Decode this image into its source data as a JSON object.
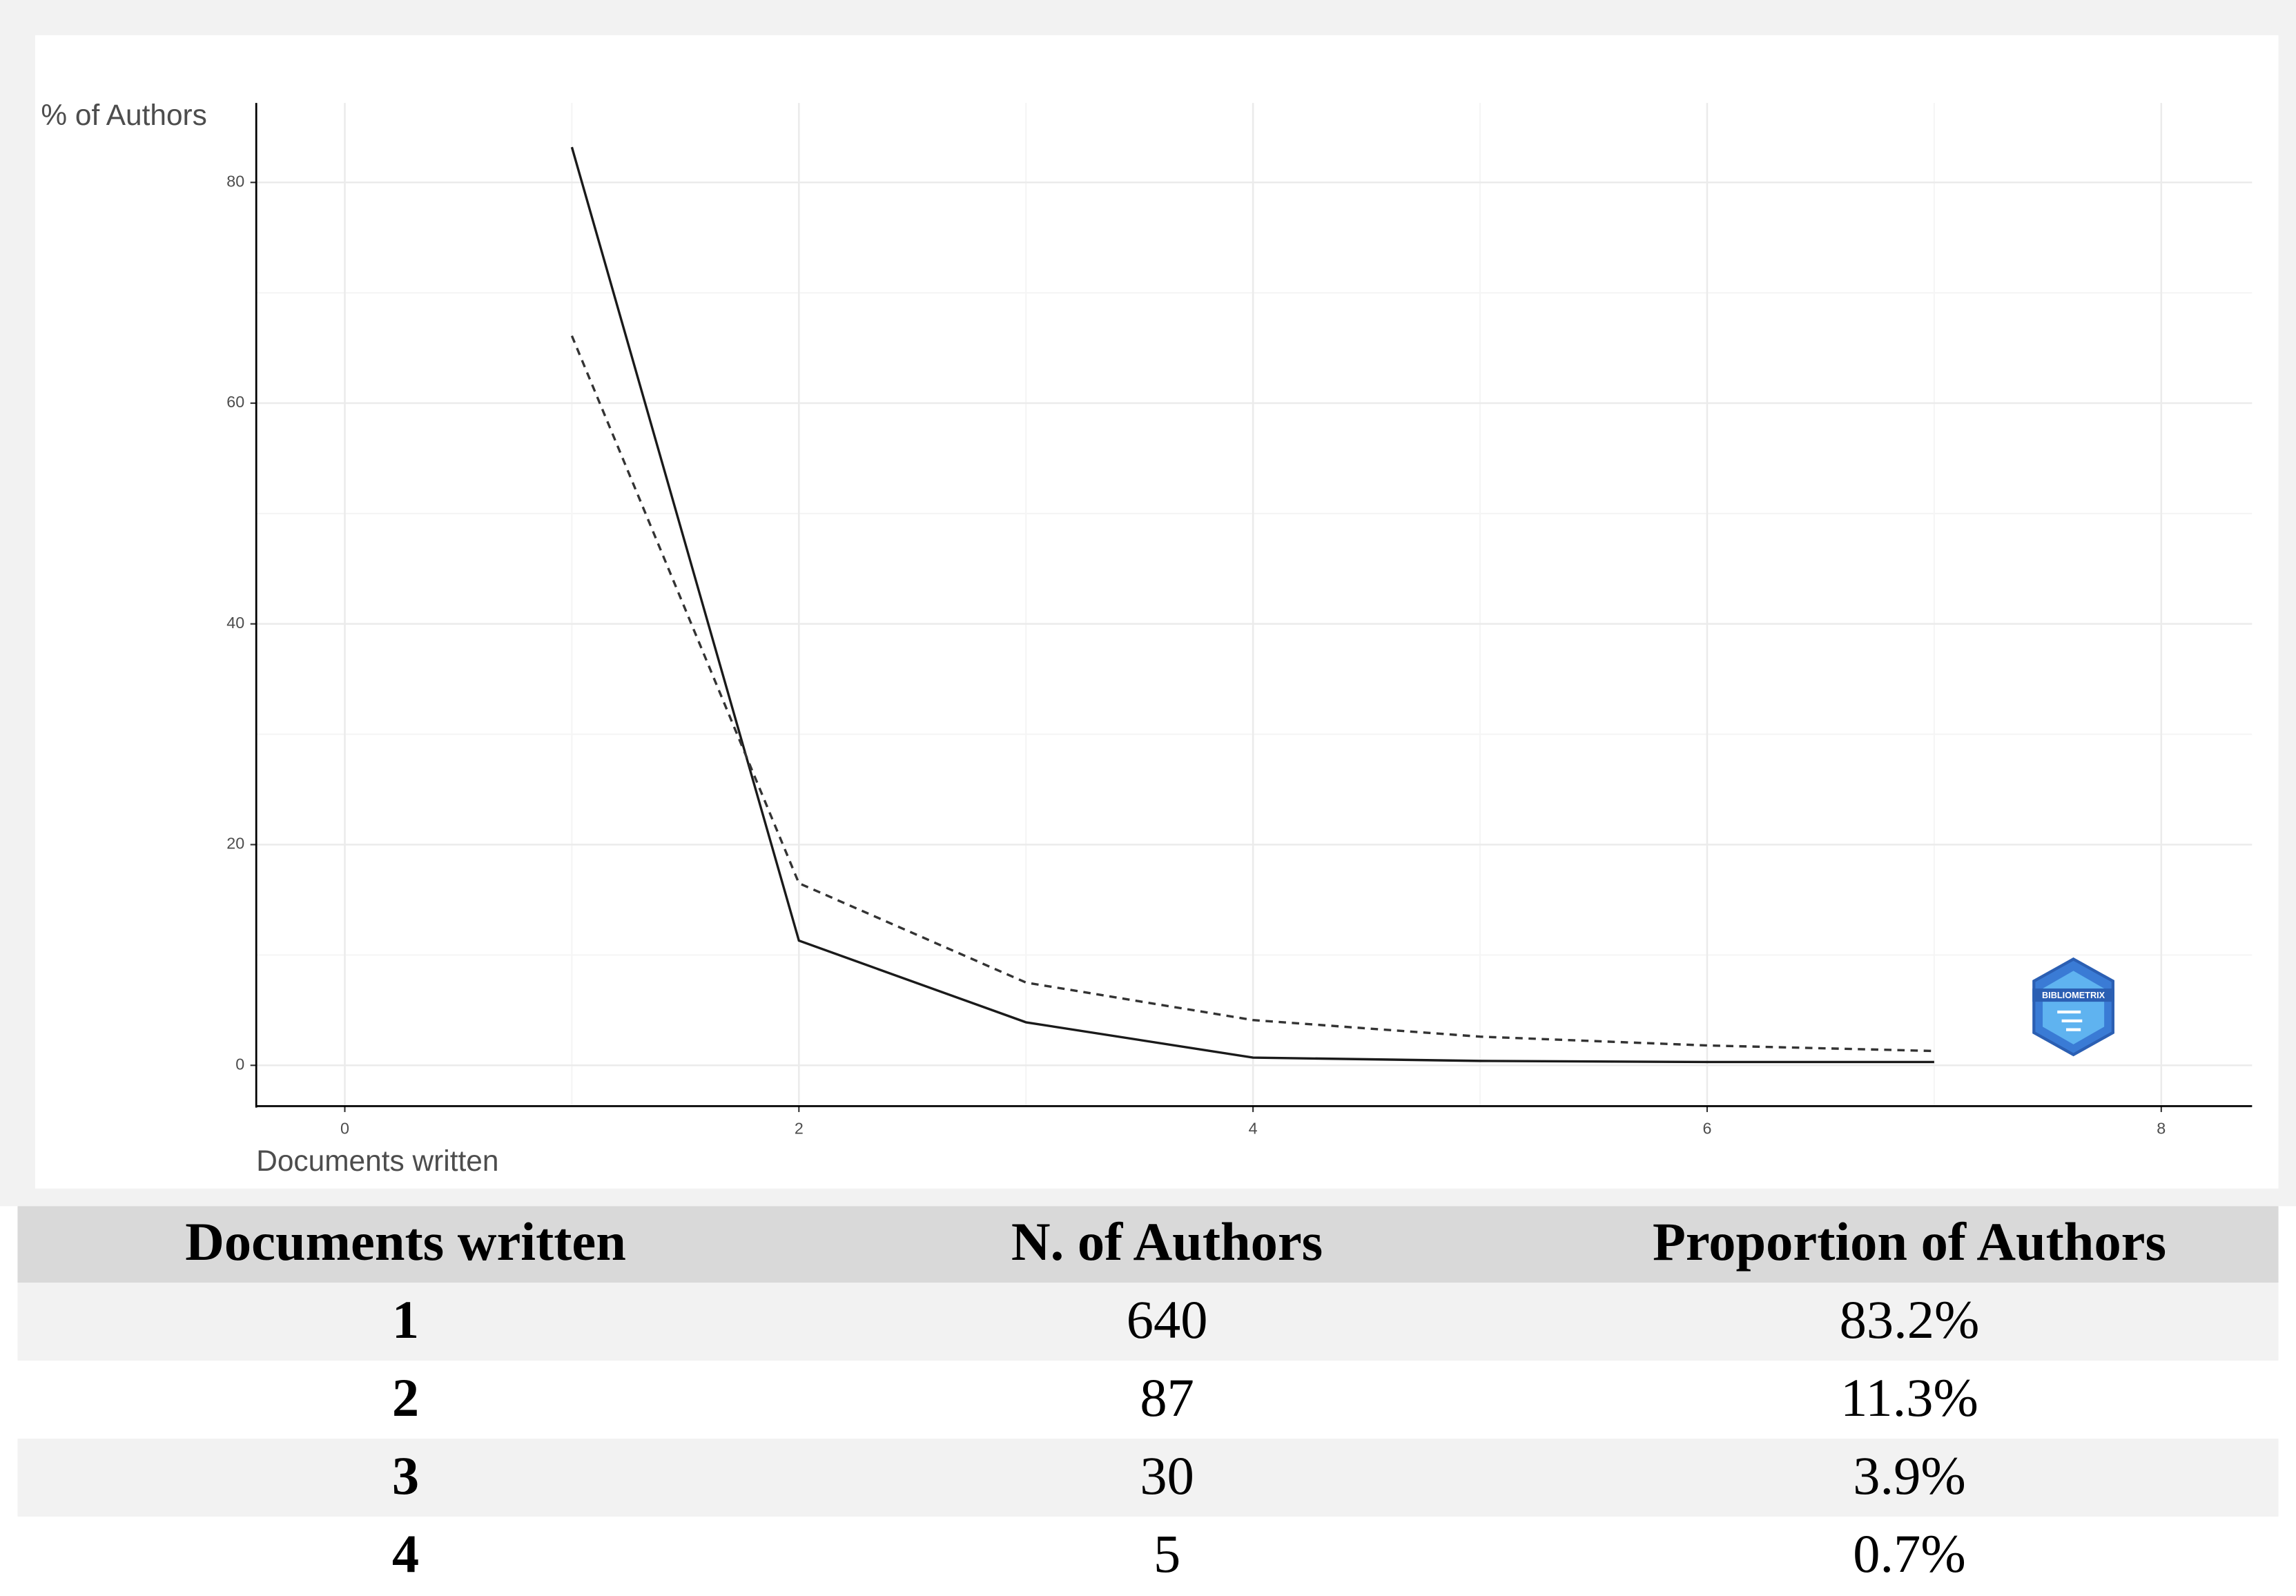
{
  "chart_data": {
    "type": "line",
    "x_label": "Documents written",
    "y_label": "% of Authors",
    "x": [
      1,
      2,
      3,
      4,
      5,
      6,
      7
    ],
    "series": [
      {
        "color": "#1a1a1a",
        "dash": "solid",
        "values": [
          83.2,
          11.3,
          3.9,
          0.7,
          0.4,
          0.3,
          0.3
        ]
      },
      {
        "color": "#333333",
        "dash": "dashed",
        "values": [
          66.1,
          16.5,
          7.5,
          4.1,
          2.6,
          1.8,
          1.3
        ]
      }
    ],
    "xlim": [
      -0.39,
      8.4
    ],
    "xticks": [
      0,
      2,
      4,
      6,
      8
    ],
    "ylim": [
      -3.7,
      87.2
    ],
    "yticks": [
      0,
      20,
      40,
      60,
      80
    ],
    "grid": true
  },
  "logo": "BIBLIOMETRIX",
  "table": {
    "header": [
      "Documents written",
      "N. of Authors",
      "Proportion of Authors"
    ],
    "rows": [
      [
        "1",
        "640",
        "83.2%"
      ],
      [
        "2",
        "87",
        "11.3%"
      ],
      [
        "3",
        "30",
        "3.9%"
      ],
      [
        "4",
        "5",
        "0.7%"
      ]
    ]
  }
}
